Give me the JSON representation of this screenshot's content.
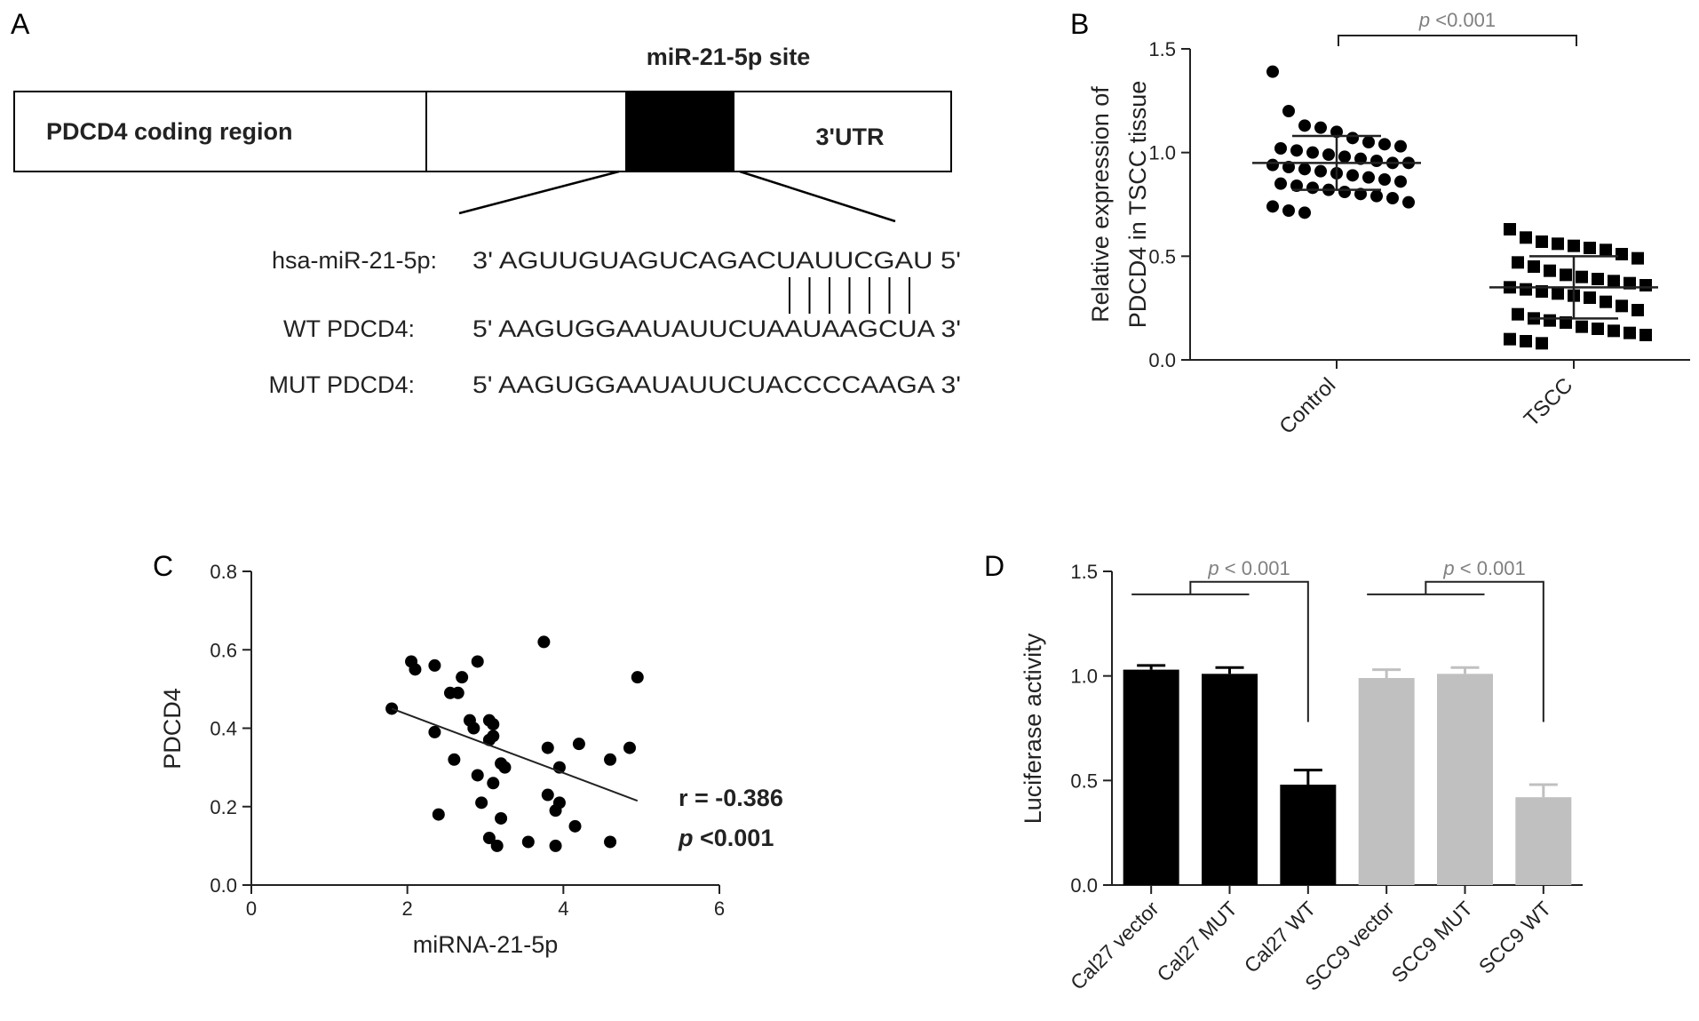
{
  "panels": {
    "a": "A",
    "b": "B",
    "c": "C",
    "d": "D"
  },
  "panel_a": {
    "site_label": "miR-21-5p site",
    "coding_label": "PDCD4 coding region",
    "utr_label": "3'UTR",
    "rows": [
      {
        "name": "hsa-miR-21-5p:",
        "seq": "3' AGUUGUAGUCAGACUAUUCGAU 5'"
      },
      {
        "name": "WT  PDCD4:",
        "seq": "5' AAGUGGAAUAUUCUAAUAAGCUA 3'"
      },
      {
        "name": "MUT  PDCD4:",
        "seq": "5' AAGUGGAAUAUUCUACCCCAAGA 3'"
      }
    ],
    "pair_count": 7
  },
  "colors": {
    "black": "#000000",
    "gray_bar": "#c0c0c0",
    "annotation_gray": "#808080"
  },
  "chart_data": [
    {
      "panel": "B",
      "type": "scatter",
      "ylabel_line1": "Relative expression of",
      "ylabel_line2": "PDCD4 in TSCC tissue",
      "ylim": [
        0,
        1.5
      ],
      "yticks": [
        "0.0",
        "0.5",
        "1.0",
        "1.5"
      ],
      "categories": [
        "Control",
        "TSCC"
      ],
      "annotation": "p <0.001",
      "series": [
        {
          "marker": "circle",
          "mean": 0.95,
          "sd": 0.13,
          "values": [
            1.39,
            1.2,
            1.13,
            1.12,
            1.1,
            1.07,
            1.05,
            1.04,
            1.03,
            1.02,
            1.01,
            1.0,
            0.99,
            0.98,
            0.97,
            0.96,
            0.95,
            0.95,
            0.94,
            0.93,
            0.92,
            0.91,
            0.9,
            0.89,
            0.88,
            0.87,
            0.86,
            0.85,
            0.84,
            0.83,
            0.82,
            0.81,
            0.8,
            0.79,
            0.78,
            0.76,
            0.74,
            0.72,
            0.71
          ]
        },
        {
          "marker": "square",
          "mean": 0.35,
          "sd": 0.15,
          "values": [
            0.63,
            0.59,
            0.57,
            0.56,
            0.55,
            0.54,
            0.53,
            0.51,
            0.49,
            0.47,
            0.45,
            0.43,
            0.41,
            0.4,
            0.39,
            0.38,
            0.37,
            0.36,
            0.35,
            0.34,
            0.33,
            0.32,
            0.31,
            0.3,
            0.28,
            0.26,
            0.24,
            0.22,
            0.2,
            0.19,
            0.18,
            0.16,
            0.15,
            0.14,
            0.13,
            0.12,
            0.1,
            0.09,
            0.08
          ]
        }
      ]
    },
    {
      "panel": "C",
      "type": "scatter",
      "xlabel": "miRNA-21-5p",
      "ylabel": "PDCD4",
      "xlim": [
        0,
        6
      ],
      "ylim": [
        0,
        0.8
      ],
      "xticks": [
        "0",
        "2",
        "4",
        "6"
      ],
      "yticks": [
        "0.0",
        "0.2",
        "0.4",
        "0.6",
        "0.8"
      ],
      "r_text": "r = -0.386",
      "p_text": "p <0.001",
      "fit": {
        "x": [
          1.8,
          4.95
        ],
        "y": [
          0.45,
          0.215
        ]
      },
      "points": [
        [
          1.8,
          0.45
        ],
        [
          2.05,
          0.57
        ],
        [
          2.1,
          0.55
        ],
        [
          2.35,
          0.56
        ],
        [
          2.35,
          0.39
        ],
        [
          2.4,
          0.18
        ],
        [
          2.55,
          0.49
        ],
        [
          2.6,
          0.32
        ],
        [
          2.65,
          0.49
        ],
        [
          2.7,
          0.53
        ],
        [
          2.8,
          0.42
        ],
        [
          2.85,
          0.4
        ],
        [
          2.9,
          0.28
        ],
        [
          2.9,
          0.57
        ],
        [
          2.95,
          0.21
        ],
        [
          3.05,
          0.42
        ],
        [
          3.05,
          0.37
        ],
        [
          3.1,
          0.26
        ],
        [
          3.05,
          0.12
        ],
        [
          3.1,
          0.41
        ],
        [
          3.1,
          0.38
        ],
        [
          3.15,
          0.1
        ],
        [
          3.2,
          0.31
        ],
        [
          3.2,
          0.17
        ],
        [
          3.25,
          0.3
        ],
        [
          3.55,
          0.11
        ],
        [
          3.75,
          0.62
        ],
        [
          3.8,
          0.35
        ],
        [
          3.8,
          0.23
        ],
        [
          3.9,
          0.1
        ],
        [
          3.9,
          0.19
        ],
        [
          3.95,
          0.3
        ],
        [
          3.95,
          0.21
        ],
        [
          4.15,
          0.15
        ],
        [
          4.2,
          0.36
        ],
        [
          4.6,
          0.11
        ],
        [
          4.6,
          0.32
        ],
        [
          4.85,
          0.35
        ],
        [
          4.95,
          0.53
        ]
      ]
    },
    {
      "panel": "D",
      "type": "bar",
      "ylabel": "Luciferase activity",
      "ylim": [
        0,
        1.5
      ],
      "yticks": [
        "0.0",
        "0.5",
        "1.0",
        "1.5"
      ],
      "categories": [
        "Cal27 vector",
        "Cal27 MUT",
        "Cal27 WT",
        "SCC9 vector",
        "SCC9 MUT",
        "SCC9 WT"
      ],
      "values": [
        1.03,
        1.01,
        0.48,
        0.99,
        1.01,
        0.42
      ],
      "errors": [
        0.02,
        0.03,
        0.07,
        0.04,
        0.03,
        0.06
      ],
      "bar_colors": [
        "black",
        "black",
        "black",
        "gray_bar",
        "gray_bar",
        "gray_bar"
      ],
      "annotations": [
        "p < 0.001",
        "p < 0.001"
      ]
    }
  ]
}
